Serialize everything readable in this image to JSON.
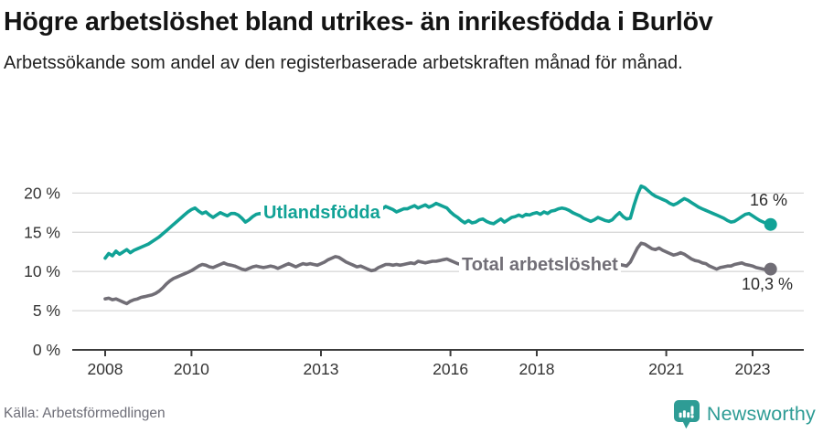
{
  "header": {
    "title": "Högre arbetslöshet bland utrikes- än inrikesfödda i Burlöv",
    "subtitle": "Arbetssökande som andel av den registerbaserade arbetskraften månad för månad."
  },
  "chart_data": {
    "type": "line",
    "title": "",
    "xlabel": "",
    "ylabel": "",
    "x_unit": "month",
    "x_start": "2008-01",
    "x_end": "2023-06",
    "x_tick_years": [
      2008,
      2010,
      2013,
      2016,
      2018,
      2021,
      2023
    ],
    "y_ticks": [
      0,
      5,
      10,
      15,
      20
    ],
    "y_tick_suffix": " %",
    "ylim": [
      0,
      21.5
    ],
    "grid": "horizontal",
    "legend_position": "inline-labels",
    "series": [
      {
        "name": "Utlandsfödda",
        "color": "#11a296",
        "end_label": "16 %",
        "end_value": 16.0,
        "values": [
          11.7,
          12.3,
          12.0,
          12.6,
          12.2,
          12.5,
          12.8,
          12.4,
          12.7,
          12.9,
          13.1,
          13.3,
          13.5,
          13.8,
          14.1,
          14.4,
          14.8,
          15.2,
          15.6,
          16.0,
          16.4,
          16.8,
          17.2,
          17.6,
          17.9,
          18.1,
          17.7,
          17.4,
          17.6,
          17.2,
          16.9,
          17.2,
          17.5,
          17.3,
          17.1,
          17.4,
          17.4,
          17.2,
          16.8,
          16.3,
          16.6,
          17.0,
          17.3,
          17.4,
          17.2,
          17.3,
          17.5,
          17.4,
          17.3,
          17.5,
          17.6,
          17.4,
          17.2,
          17.4,
          17.7,
          17.5,
          17.3,
          17.6,
          17.8,
          17.6,
          17.5,
          17.7,
          17.9,
          18.0,
          17.8,
          17.6,
          17.9,
          18.1,
          17.8,
          17.6,
          17.4,
          17.7,
          17.8,
          18.0,
          18.2,
          17.9,
          17.7,
          18.0,
          18.3,
          18.1,
          17.9,
          17.6,
          17.8,
          18.0,
          18.0,
          18.2,
          18.4,
          18.1,
          18.3,
          18.5,
          18.2,
          18.4,
          18.7,
          18.5,
          18.3,
          18.1,
          17.6,
          17.2,
          16.9,
          16.5,
          16.2,
          16.5,
          16.2,
          16.3,
          16.6,
          16.7,
          16.4,
          16.2,
          16.1,
          16.4,
          16.7,
          16.3,
          16.6,
          16.9,
          17.0,
          17.2,
          17.0,
          17.3,
          17.2,
          17.4,
          17.5,
          17.3,
          17.6,
          17.4,
          17.7,
          17.8,
          18.0,
          18.1,
          18.0,
          17.8,
          17.5,
          17.3,
          17.1,
          16.8,
          16.6,
          16.4,
          16.6,
          16.9,
          16.7,
          16.5,
          16.4,
          16.6,
          17.1,
          17.5,
          17.0,
          16.7,
          16.8,
          18.4,
          19.8,
          20.9,
          20.7,
          20.3,
          19.9,
          19.6,
          19.4,
          19.2,
          19.0,
          18.7,
          18.5,
          18.7,
          19.0,
          19.3,
          19.1,
          18.8,
          18.5,
          18.2,
          18.0,
          17.8,
          17.6,
          17.4,
          17.2,
          17.0,
          16.8,
          16.5,
          16.3,
          16.4,
          16.7,
          17.0,
          17.3,
          17.4,
          17.1,
          16.8,
          16.5,
          16.3,
          16.1,
          16.0
        ]
      },
      {
        "name": "Total arbetslöshet",
        "color": "#716e76",
        "end_label": "10,3 %",
        "end_value": 10.3,
        "values": [
          6.5,
          6.6,
          6.4,
          6.5,
          6.3,
          6.1,
          5.9,
          6.2,
          6.4,
          6.5,
          6.7,
          6.8,
          6.9,
          7.0,
          7.2,
          7.5,
          7.9,
          8.4,
          8.8,
          9.1,
          9.3,
          9.5,
          9.7,
          9.9,
          10.1,
          10.4,
          10.7,
          10.9,
          10.8,
          10.6,
          10.5,
          10.7,
          10.9,
          11.1,
          10.9,
          10.8,
          10.7,
          10.5,
          10.3,
          10.2,
          10.4,
          10.6,
          10.7,
          10.6,
          10.5,
          10.6,
          10.7,
          10.6,
          10.4,
          10.6,
          10.8,
          11.0,
          10.8,
          10.6,
          10.8,
          11.0,
          10.9,
          11.0,
          10.9,
          10.8,
          11.0,
          11.2,
          11.5,
          11.7,
          11.9,
          11.8,
          11.5,
          11.2,
          11.0,
          10.8,
          10.6,
          10.7,
          10.5,
          10.3,
          10.1,
          10.2,
          10.5,
          10.7,
          10.9,
          10.9,
          10.8,
          10.9,
          10.8,
          10.9,
          11.0,
          11.1,
          11.0,
          11.3,
          11.2,
          11.1,
          11.2,
          11.3,
          11.3,
          11.4,
          11.5,
          11.6,
          11.4,
          11.2,
          11.0,
          10.9,
          10.8,
          10.7,
          10.6,
          10.7,
          10.8,
          10.7,
          10.6,
          10.5,
          10.4,
          10.5,
          10.6,
          10.5,
          10.4,
          10.5,
          10.6,
          10.7,
          10.6,
          10.7,
          10.8,
          10.7,
          10.6,
          10.7,
          10.8,
          10.7,
          10.8,
          10.9,
          10.8,
          10.7,
          10.8,
          10.9,
          10.8,
          10.7,
          10.6,
          10.5,
          10.4,
          10.5,
          10.6,
          10.5,
          10.4,
          10.5,
          10.6,
          10.7,
          10.8,
          10.9,
          10.8,
          10.7,
          11.2,
          12.1,
          13.0,
          13.6,
          13.5,
          13.2,
          12.9,
          12.8,
          13.0,
          12.7,
          12.5,
          12.3,
          12.1,
          12.2,
          12.4,
          12.2,
          11.9,
          11.6,
          11.4,
          11.3,
          11.1,
          11.0,
          10.7,
          10.5,
          10.3,
          10.5,
          10.6,
          10.7,
          10.7,
          10.9,
          11.0,
          11.1,
          10.9,
          10.8,
          10.7,
          10.5,
          10.4,
          10.3,
          10.2,
          10.3
        ]
      }
    ]
  },
  "footer": {
    "source": "Källa: Arbetsförmedlingen",
    "brand": "Newsworthy"
  },
  "colors": {
    "series_teal": "#11a296",
    "series_gray": "#716e76",
    "brand_teal": "#2e9c95",
    "gridline": "#d9d9d9",
    "axis": "#3c3c3c",
    "tick_text": "#333333"
  }
}
